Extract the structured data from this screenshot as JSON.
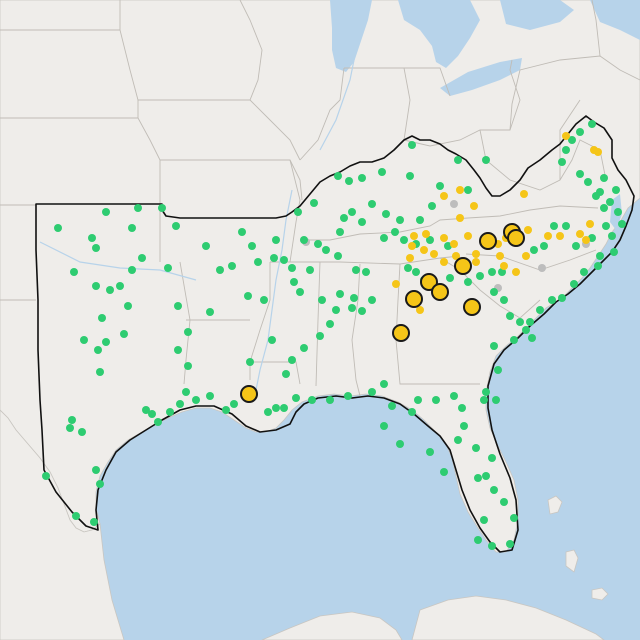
{
  "map": {
    "colors": {
      "land": "#efedea",
      "water": "#b7d3ea",
      "land_edge": "#c9c6c1",
      "state_border": "#c0bcb6",
      "region_outline": "#111111",
      "river": "#b7d3ea",
      "marker_green": "#2ecc71",
      "marker_yellow": "#f5c518",
      "marker_gray": "#bdbdbd",
      "large_marker_fill": "#f5c518",
      "large_marker_stroke": "#1a1a1a"
    },
    "marker_categories": [
      "green",
      "yellow",
      "gray",
      "large-yellow"
    ]
  }
}
